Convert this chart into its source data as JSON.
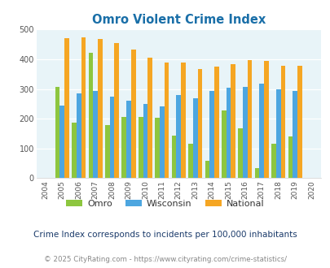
{
  "title": "Omro Violent Crime Index",
  "years": [
    2004,
    2005,
    2006,
    2007,
    2008,
    2009,
    2010,
    2011,
    2012,
    2013,
    2014,
    2015,
    2016,
    2017,
    2018,
    2019,
    2020
  ],
  "omro": [
    null,
    307,
    186,
    422,
    179,
    205,
    205,
    202,
    144,
    115,
    58,
    228,
    168,
    33,
    115,
    140,
    null
  ],
  "wisconsin": [
    null,
    244,
    284,
    292,
    274,
    260,
    250,
    241,
    280,
    270,
    292,
    305,
    306,
    317,
    298,
    293,
    null
  ],
  "national": [
    null,
    470,
    473,
    467,
    455,
    432,
    405,
    388,
    388,
    368,
    376,
    383,
    398,
    394,
    379,
    379,
    null
  ],
  "omro_color": "#8dc63f",
  "wisconsin_color": "#4da6e0",
  "national_color": "#f5a623",
  "bg_color": "#e8f4f8",
  "title_color": "#1a6fa8",
  "yticks": [
    0,
    100,
    200,
    300,
    400,
    500
  ],
  "subtitle": "Crime Index corresponds to incidents per 100,000 inhabitants",
  "footer": "© 2025 CityRating.com - https://www.cityrating.com/crime-statistics/",
  "subtitle_color": "#1a3a6a",
  "footer_color": "#888888",
  "legend_text_color": "#333333"
}
